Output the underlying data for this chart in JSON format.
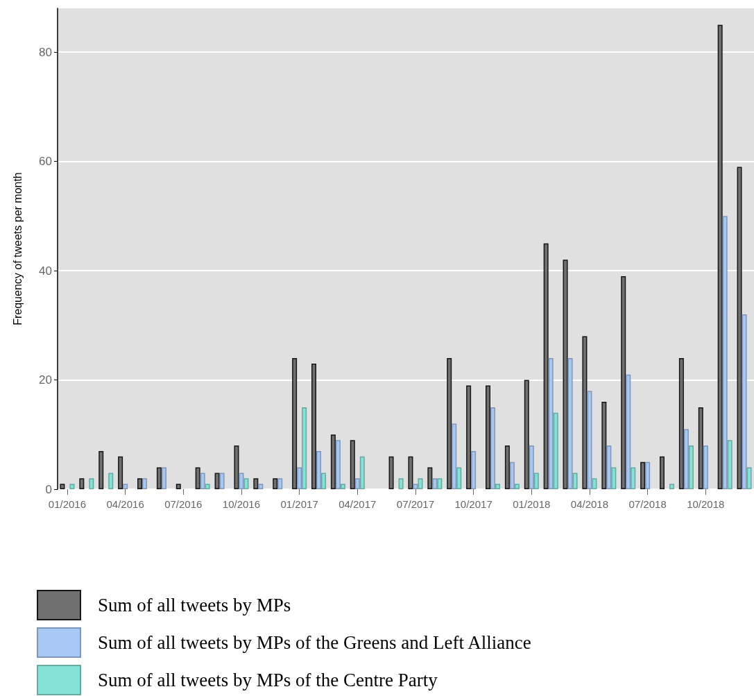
{
  "chart_data": {
    "type": "bar",
    "ylabel": "Frequency of tweets per month",
    "categories": [
      "01/2016",
      null,
      null,
      "04/2016",
      null,
      null,
      "07/2016",
      null,
      null,
      "10/2016",
      null,
      null,
      "01/2017",
      null,
      null,
      "04/2017",
      null,
      null,
      "07/2017",
      null,
      null,
      "10/2017",
      null,
      null,
      "01/2018",
      null,
      null,
      "04/2018",
      null,
      null,
      "07/2018",
      null,
      null,
      "10/2018",
      null,
      null
    ],
    "series": [
      {
        "name": "Sum of all tweets by MPs",
        "color": "#707070",
        "values": [
          1,
          2,
          7,
          6,
          2,
          4,
          1,
          4,
          3,
          8,
          2,
          2,
          24,
          23,
          10,
          9,
          0,
          6,
          6,
          4,
          24,
          19,
          19,
          8,
          20,
          45,
          42,
          28,
          16,
          39,
          5,
          6,
          24,
          15,
          85,
          59
        ]
      },
      {
        "name": "Sum of all tweets by MPs of the Greens and Left Alliance",
        "color": "#a8c8f4",
        "values": [
          0,
          0,
          0,
          1,
          2,
          4,
          0,
          3,
          3,
          3,
          1,
          2,
          4,
          7,
          9,
          2,
          0,
          0,
          1,
          2,
          12,
          7,
          15,
          5,
          8,
          24,
          24,
          18,
          8,
          21,
          5,
          0,
          11,
          8,
          50,
          32
        ]
      },
      {
        "name": "Sum of all tweets by MPs of the Centre Party",
        "color": "#84e2d6",
        "values": [
          1,
          2,
          3,
          0,
          0,
          0,
          0,
          1,
          0,
          2,
          0,
          0,
          15,
          3,
          1,
          6,
          0,
          2,
          2,
          2,
          4,
          0,
          1,
          1,
          3,
          14,
          3,
          2,
          4,
          4,
          0,
          1,
          8,
          0,
          9,
          4
        ]
      }
    ],
    "ylim": [
      0,
      88
    ],
    "yticks": [
      0,
      20,
      40,
      60,
      80
    ],
    "grid": "y",
    "legend": "bottom"
  }
}
